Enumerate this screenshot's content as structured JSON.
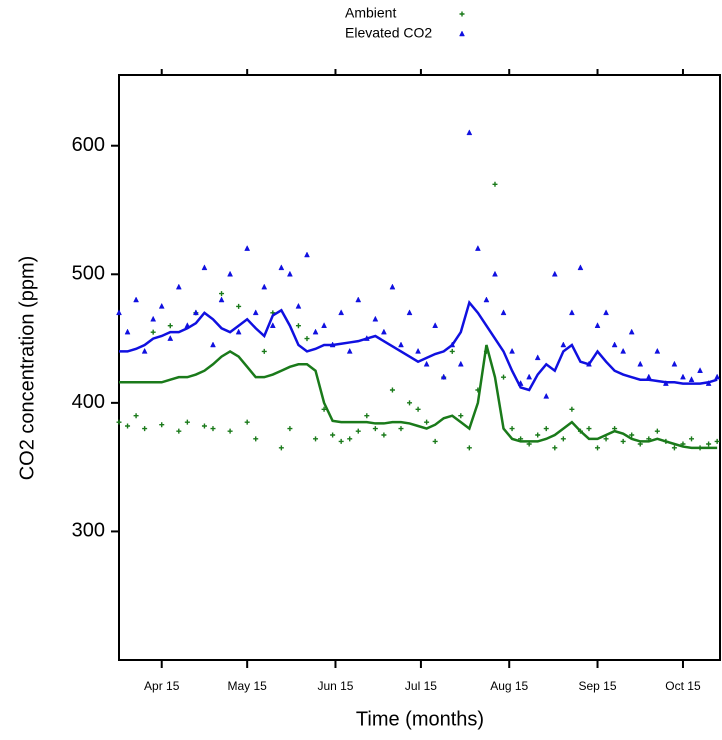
{
  "chart_data": {
    "type": "scatter",
    "x_label": "Time (months)",
    "y_label": "CO2 concentration (ppm)",
    "xlim": [
      90,
      301
    ],
    "ylim": [
      200,
      655
    ],
    "xticks": [
      {
        "value": 105,
        "label": "Apr 15"
      },
      {
        "value": 135,
        "label": "May 15"
      },
      {
        "value": 166,
        "label": "Jun 15"
      },
      {
        "value": 196,
        "label": "Jul 15"
      },
      {
        "value": 227,
        "label": "Aug 15"
      },
      {
        "value": 258,
        "label": "Sep 15"
      },
      {
        "value": 288,
        "label": "Oct 15"
      }
    ],
    "yticks": [
      300,
      400,
      500,
      600
    ],
    "x": [
      90,
      93,
      96,
      99,
      102,
      105,
      108,
      111,
      114,
      117,
      120,
      123,
      126,
      129,
      132,
      135,
      138,
      141,
      144,
      147,
      150,
      153,
      156,
      159,
      162,
      165,
      168,
      171,
      174,
      177,
      180,
      183,
      186,
      189,
      192,
      195,
      198,
      201,
      204,
      207,
      210,
      213,
      216,
      219,
      222,
      225,
      228,
      231,
      234,
      237,
      240,
      243,
      246,
      249,
      252,
      255,
      258,
      261,
      264,
      267,
      270,
      273,
      276,
      279,
      282,
      285,
      288,
      291,
      294,
      297,
      300
    ],
    "series": [
      {
        "name": "Ambient",
        "color": "#1a7a1a",
        "marker": "plus",
        "values": [
          385,
          382,
          390,
          380,
          455,
          383,
          460,
          378,
          385,
          470,
          382,
          380,
          485,
          378,
          475,
          385,
          372,
          440,
          470,
          365,
          380,
          460,
          450,
          372,
          395,
          375,
          370,
          372,
          378,
          390,
          380,
          375,
          410,
          380,
          400,
          395,
          385,
          370,
          420,
          440,
          390,
          365,
          410,
          440,
          570,
          420,
          380,
          372,
          368,
          375,
          380,
          365,
          372,
          395,
          378,
          380,
          365,
          372,
          380,
          370,
          375,
          368,
          372,
          378,
          370,
          365,
          368,
          372,
          365,
          368,
          370
        ],
        "trend": [
          416,
          416,
          416,
          416,
          416,
          416,
          418,
          420,
          420,
          422,
          425,
          430,
          436,
          440,
          436,
          428,
          420,
          420,
          422,
          425,
          428,
          430,
          430,
          425,
          400,
          386,
          385,
          385,
          385,
          385,
          384,
          384,
          385,
          385,
          384,
          382,
          380,
          383,
          388,
          390,
          385,
          380,
          400,
          445,
          420,
          380,
          372,
          370,
          370,
          370,
          372,
          375,
          380,
          385,
          378,
          372,
          372,
          375,
          378,
          376,
          372,
          370,
          370,
          372,
          370,
          368,
          366,
          365,
          365,
          365,
          365
        ]
      },
      {
        "name": "Elevated CO2",
        "color": "#1010e0",
        "marker": "triangle",
        "values": [
          470,
          455,
          480,
          440,
          465,
          475,
          450,
          490,
          460,
          470,
          505,
          445,
          480,
          500,
          455,
          520,
          470,
          490,
          460,
          505,
          500,
          475,
          515,
          455,
          460,
          445,
          470,
          440,
          480,
          450,
          465,
          455,
          490,
          445,
          470,
          440,
          430,
          460,
          420,
          445,
          430,
          610,
          520,
          480,
          500,
          470,
          440,
          415,
          420,
          435,
          405,
          500,
          445,
          470,
          505,
          430,
          460,
          470,
          445,
          440,
          455,
          430,
          420,
          440,
          415,
          430,
          420,
          418,
          425,
          415,
          420
        ],
        "trend": [
          440,
          440,
          442,
          445,
          450,
          452,
          455,
          455,
          458,
          462,
          470,
          465,
          458,
          455,
          460,
          465,
          458,
          452,
          468,
          472,
          460,
          445,
          440,
          442,
          445,
          445,
          446,
          447,
          448,
          450,
          452,
          448,
          444,
          440,
          436,
          432,
          435,
          438,
          440,
          445,
          455,
          478,
          470,
          460,
          450,
          440,
          425,
          412,
          410,
          422,
          430,
          425,
          440,
          445,
          432,
          430,
          440,
          432,
          425,
          422,
          420,
          418,
          418,
          417,
          416,
          416,
          415,
          415,
          415,
          416,
          418
        ]
      }
    ]
  }
}
